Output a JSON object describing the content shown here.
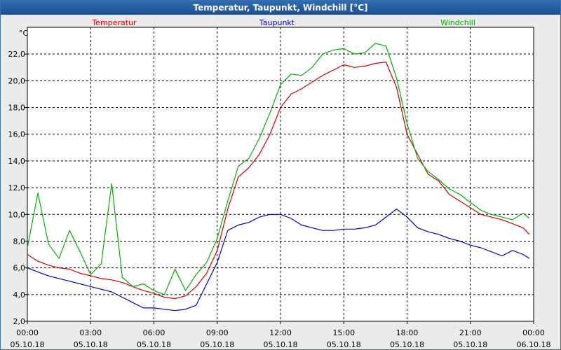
{
  "chart_data": {
    "type": "line",
    "title": "Temperatur, Taupunkt, Windchill [°C]",
    "ylabel": "°C",
    "ylim": [
      2,
      24
    ],
    "yticks": [
      "2,0",
      "4,0",
      "6,0",
      "8,0",
      "10,0",
      "12,0",
      "14,0",
      "16,0",
      "18,0",
      "20,0",
      "22,0"
    ],
    "xlim": [
      0,
      24
    ],
    "xticks": [
      {
        "time": "00:00",
        "date": "05.10.18"
      },
      {
        "time": "03:00",
        "date": "05.10.18"
      },
      {
        "time": "06:00",
        "date": "05.10.18"
      },
      {
        "time": "09:00",
        "date": "05.10.18"
      },
      {
        "time": "12:00",
        "date": "05.10.18"
      },
      {
        "time": "15:00",
        "date": "05.10.18"
      },
      {
        "time": "18:00",
        "date": "05.10.18"
      },
      {
        "time": "21:00",
        "date": "05.10.18"
      },
      {
        "time": "00:00",
        "date": "06.10.18"
      }
    ],
    "legend_placement": "top",
    "x": [
      0,
      0.5,
      1,
      1.5,
      2,
      2.5,
      3,
      3.5,
      4,
      4.5,
      5,
      5.5,
      6,
      6.5,
      7,
      7.5,
      8,
      8.5,
      9,
      9.5,
      10,
      10.5,
      11,
      11.5,
      12,
      12.5,
      13,
      13.5,
      14,
      14.5,
      15,
      15.5,
      16,
      16.5,
      17,
      17.5,
      18,
      18.5,
      19,
      19.5,
      20,
      20.5,
      21,
      21.5,
      22,
      22.5,
      23,
      23.5,
      23.8
    ],
    "series": [
      {
        "name": "Temperatur",
        "color": "#d00000",
        "values": [
          7.0,
          6.5,
          6.2,
          6.0,
          5.9,
          5.6,
          5.4,
          5.2,
          5.1,
          4.9,
          4.6,
          4.3,
          4.1,
          3.8,
          3.7,
          3.9,
          4.6,
          5.6,
          7.3,
          10.4,
          12.8,
          13.5,
          14.5,
          16.0,
          18.0,
          19.0,
          19.4,
          19.9,
          20.4,
          20.8,
          21.2,
          21.0,
          21.1,
          21.3,
          21.4,
          19.5,
          16.0,
          14.5,
          13.0,
          12.5,
          11.5,
          11.0,
          10.5,
          10.0,
          9.8,
          9.6,
          9.3,
          9.0,
          8.5
        ]
      },
      {
        "name": "Taupunkt",
        "color": "#0000c0",
        "values": [
          6.0,
          5.7,
          5.4,
          5.2,
          5.0,
          4.8,
          4.6,
          4.4,
          4.2,
          3.8,
          3.4,
          3.0,
          3.0,
          2.9,
          2.8,
          2.9,
          3.2,
          4.8,
          6.4,
          8.8,
          9.2,
          9.4,
          9.8,
          10.0,
          10.0,
          9.7,
          9.2,
          9.0,
          8.8,
          8.8,
          8.9,
          8.9,
          9.0,
          9.2,
          9.8,
          10.4,
          9.8,
          9.0,
          8.7,
          8.5,
          8.2,
          8.0,
          7.7,
          7.5,
          7.2,
          6.9,
          7.3,
          7.0,
          6.7
        ]
      },
      {
        "name": "Windchill",
        "color": "#00b000",
        "values": [
          7.5,
          11.6,
          7.8,
          6.7,
          8.8,
          7.2,
          5.5,
          6.3,
          12.3,
          5.3,
          4.6,
          4.8,
          4.3,
          4.0,
          5.9,
          4.3,
          5.5,
          6.4,
          8.2,
          11.0,
          13.6,
          14.2,
          15.7,
          17.6,
          19.7,
          20.5,
          20.4,
          21.0,
          22.0,
          22.3,
          22.4,
          22.0,
          22.1,
          22.8,
          22.6,
          20.2,
          16.8,
          14.2,
          13.2,
          12.6,
          11.9,
          11.5,
          10.9,
          10.3,
          10.0,
          9.8,
          9.6,
          10.1,
          9.7
        ]
      }
    ]
  }
}
